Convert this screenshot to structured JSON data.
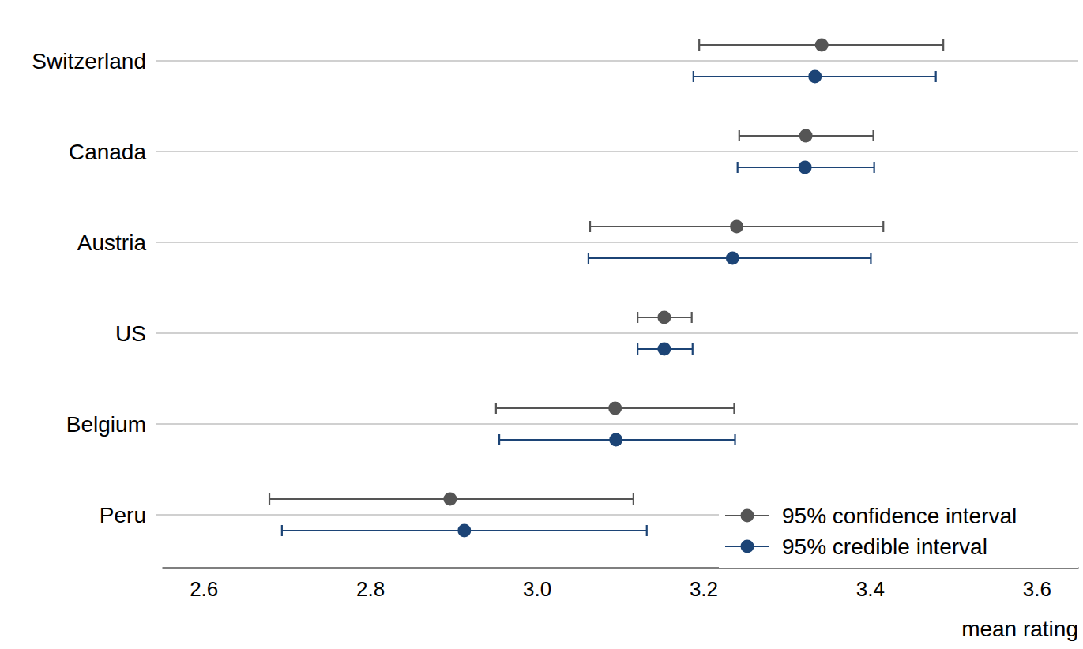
{
  "chart_data": {
    "type": "dot",
    "categories": [
      "Switzerland",
      "Canada",
      "Austria",
      "US",
      "Belgium",
      "Peru"
    ],
    "series": [
      {
        "name": "95% confidence interval",
        "color": "#555555",
        "values": [
          3.342,
          3.323,
          3.24,
          3.153,
          3.094,
          2.896
        ],
        "lower": [
          3.195,
          3.243,
          3.064,
          3.121,
          2.951,
          2.679
        ],
        "upper": [
          3.488,
          3.404,
          3.416,
          3.186,
          3.237,
          3.116
        ]
      },
      {
        "name": "95% credible interval",
        "color": "#1c4476",
        "values": [
          3.334,
          3.322,
          3.235,
          3.153,
          3.095,
          2.913
        ],
        "lower": [
          3.188,
          3.241,
          3.062,
          3.121,
          2.955,
          2.694
        ],
        "upper": [
          3.479,
          3.405,
          3.401,
          3.187,
          3.238,
          3.132
        ]
      }
    ],
    "x_label": "mean rating",
    "xlim": [
      2.55,
      3.65
    ],
    "xticks": [
      2.6,
      2.8,
      {
        "value": 3,
        "label": "3.0"
      },
      3.2,
      3.4,
      3.6
    ],
    "grid": true,
    "legend": "bottom-right"
  }
}
